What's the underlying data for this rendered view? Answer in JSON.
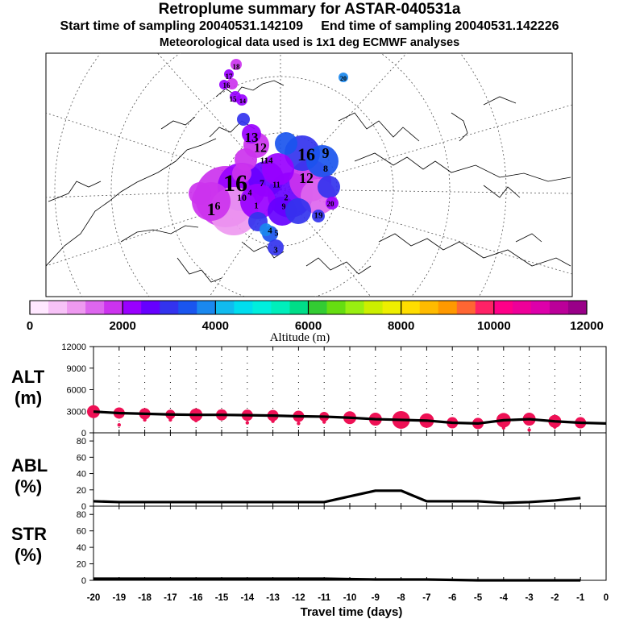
{
  "header": {
    "title": "Retroplume summary for ASTAR-040531a",
    "start_label": "Start time of sampling 20040531.142109",
    "end_label": "End time of sampling 20040531.142226",
    "met_label": "Meteorological data used is 1x1 deg ECMWF analyses"
  },
  "colorbar": {
    "colors": [
      "#ffe8ff",
      "#f7c2f7",
      "#ee99f0",
      "#dd66ee",
      "#cc33ee",
      "#9900ff",
      "#6600ff",
      "#3333ee",
      "#1a55ee",
      "#1a88ee",
      "#11bbee",
      "#00ddee",
      "#00eedd",
      "#00eebb",
      "#00dd88",
      "#33cc33",
      "#66dd11",
      "#99ee11",
      "#ccee00",
      "#eeee00",
      "#ffdd00",
      "#ffbb00",
      "#ff9900",
      "#ff6633",
      "#ff2266",
      "#ff0088",
      "#ee0099",
      "#dd00aa",
      "#bb0099",
      "#990088"
    ],
    "tick_labels": [
      "0",
      "2000",
      "4000",
      "6000",
      "8000",
      "10000",
      "12000"
    ],
    "title": "Altitude (m)"
  },
  "map": {
    "plume_labels": [
      "18",
      "17",
      "16",
      "15",
      "14",
      "13",
      "12",
      "11",
      "10",
      "9",
      "8",
      "7",
      "6",
      "5",
      "4",
      "3",
      "2",
      "1",
      "20",
      "19"
    ]
  },
  "panels": {
    "alt_label": "ALT",
    "alt_unit": "(m)",
    "abl_label": "ABL",
    "abl_unit": "(%)",
    "str_label": "STR",
    "str_unit": "(%)"
  },
  "chart_data": [
    {
      "type": "line",
      "title": "ALT",
      "ylabel": "(m)",
      "x": [
        -20,
        -19,
        -18,
        -17,
        -16,
        -15,
        -14,
        -13,
        -12,
        -11,
        -10,
        -9,
        -8,
        -7,
        -6,
        -5,
        -4,
        -3,
        -2,
        -1
      ],
      "values": [
        2950,
        2750,
        2650,
        2550,
        2500,
        2500,
        2450,
        2400,
        2300,
        2250,
        2100,
        1900,
        1800,
        1700,
        1400,
        1300,
        1750,
        1900,
        1600,
        1400
      ],
      "extra_x": [
        0
      ],
      "extra_values": [
        1300
      ],
      "xlim": [
        -20,
        0
      ],
      "ylim": [
        0,
        12000
      ],
      "yticks": [
        "0",
        "3000",
        "6000",
        "9000",
        "12000"
      ],
      "marker_color": "#ee1155",
      "marker_sizes": [
        8,
        7,
        7,
        6,
        8,
        7,
        7,
        7,
        7,
        6,
        8,
        8,
        11,
        9,
        7,
        7,
        9,
        8,
        8,
        7
      ],
      "secondary_points": [
        {
          "x": -19,
          "y": 1100
        },
        {
          "x": -18,
          "y": 1800
        },
        {
          "x": -17,
          "y": 1800
        },
        {
          "x": -16,
          "y": 1700
        },
        {
          "x": -14,
          "y": 1400
        },
        {
          "x": -13,
          "y": 1600
        },
        {
          "x": -12,
          "y": 1300
        },
        {
          "x": -11,
          "y": 1500
        },
        {
          "x": -10,
          "y": 1500
        },
        {
          "x": -9,
          "y": 1400
        },
        {
          "x": -6,
          "y": 1000
        },
        {
          "x": -4,
          "y": 700
        },
        {
          "x": -3,
          "y": 400
        },
        {
          "x": -2,
          "y": 800
        }
      ]
    },
    {
      "type": "line",
      "title": "ABL",
      "ylabel": "(%)",
      "x": [
        -20,
        -19,
        -18,
        -17,
        -16,
        -15,
        -14,
        -13,
        -12,
        -11,
        -10,
        -9,
        -8,
        -7,
        -6,
        -5,
        -4,
        -3,
        -2,
        -1
      ],
      "values": [
        6,
        5,
        5,
        5,
        5,
        5,
        5,
        5,
        5,
        5,
        12,
        19,
        19,
        6,
        6,
        6,
        4,
        5,
        7,
        10
      ],
      "ylim": [
        0,
        90
      ],
      "yticks": [
        "0",
        "20",
        "40",
        "60",
        "80"
      ]
    },
    {
      "type": "line",
      "title": "STR",
      "ylabel": "(%)",
      "x": [
        -20,
        -19,
        -18,
        -17,
        -16,
        -15,
        -14,
        -13,
        -12,
        -11,
        -10,
        -9,
        -8,
        -7,
        -6,
        -5,
        -4,
        -3,
        -2,
        -1
      ],
      "values": [
        2,
        2,
        2,
        2,
        2,
        2,
        2,
        2,
        2,
        2,
        1.5,
        1,
        1,
        1,
        0.5,
        0,
        0,
        0,
        0,
        0
      ],
      "ylim": [
        0,
        90
      ],
      "yticks": [
        "0",
        "20",
        "40",
        "60",
        "80"
      ],
      "xlabel": "Travel time (days)",
      "xtick_labels": [
        "-20",
        "-19",
        "-18",
        "-17",
        "-16",
        "-15",
        "-14",
        "-13",
        "-12",
        "-11",
        "-10",
        "-9",
        "-8",
        "-7",
        "-6",
        "-5",
        "-4",
        "-3",
        "-2",
        "-1",
        "0"
      ]
    }
  ]
}
